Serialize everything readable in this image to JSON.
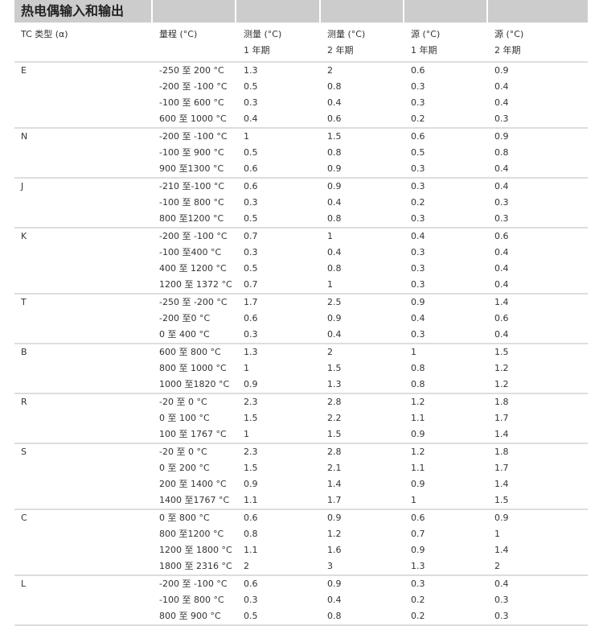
{
  "title": "热电偶输入和输出",
  "headers": {
    "line1": [
      "TC 类型 (α)",
      "量程 (°C)",
      "测量 (°C)",
      "测量 (°C)",
      "源 (°C)",
      "源 (°C)"
    ],
    "line2": [
      "",
      "",
      "1 年期",
      "2 年期",
      "1 年期",
      "2 年期"
    ]
  },
  "groups": [
    {
      "type": "E",
      "rows": [
        [
          "-250 至 200 °C",
          "1.3",
          "2",
          "0.6",
          "0.9"
        ],
        [
          "-200 至 -100 °C",
          "0.5",
          "0.8",
          "0.3",
          "0.4"
        ],
        [
          "-100 至 600 °C",
          "0.3",
          "0.4",
          "0.3",
          "0.4"
        ],
        [
          "600 至 1000 °C",
          "0.4",
          "0.6",
          "0.2",
          "0.3"
        ]
      ]
    },
    {
      "type": "N",
      "rows": [
        [
          "-200 至 -100 °C",
          "1",
          "1.5",
          "0.6",
          "0.9"
        ],
        [
          "-100 至 900 °C",
          "0.5",
          "0.8",
          "0.5",
          "0.8"
        ],
        [
          "900 至1300 °C",
          "0.6",
          "0.9",
          "0.3",
          "0.4"
        ]
      ]
    },
    {
      "type": "J",
      "rows": [
        [
          "-210 至-100 °C",
          "0.6",
          "0.9",
          "0.3",
          "0.4"
        ],
        [
          "-100 至 800 °C",
          "0.3",
          "0.4",
          "0.2",
          "0.3"
        ],
        [
          "800 至1200 °C",
          "0.5",
          "0.8",
          "0.3",
          "0.3"
        ]
      ]
    },
    {
      "type": "K",
      "rows": [
        [
          "-200 至 -100 °C",
          "0.7",
          "1",
          "0.4",
          "0.6"
        ],
        [
          "-100 至400 °C",
          "0.3",
          "0.4",
          "0.3",
          "0.4"
        ],
        [
          "400 至 1200 °C",
          "0.5",
          "0.8",
          "0.3",
          "0.4"
        ],
        [
          "1200 至 1372 °C",
          "0.7",
          "1",
          "0.3",
          "0.4"
        ]
      ]
    },
    {
      "type": "T",
      "rows": [
        [
          "-250 至 -200 °C",
          "1.7",
          "2.5",
          "0.9",
          "1.4"
        ],
        [
          "-200 至0 °C",
          "0.6",
          "0.9",
          "0.4",
          "0.6"
        ],
        [
          "0 至 400 °C",
          "0.3",
          "0.4",
          "0.3",
          "0.4"
        ]
      ]
    },
    {
      "type": "B",
      "rows": [
        [
          "600 至 800 °C",
          "1.3",
          "2",
          "1",
          "1.5"
        ],
        [
          "800 至 1000 °C",
          "1",
          "1.5",
          "0.8",
          "1.2"
        ],
        [
          "1000 至1820 °C",
          "0.9",
          "1.3",
          "0.8",
          "1.2"
        ]
      ]
    },
    {
      "type": "R",
      "rows": [
        [
          "-20 至 0 °C",
          "2.3",
          "2.8",
          "1.2",
          "1.8"
        ],
        [
          "0 至 100 °C",
          "1.5",
          "2.2",
          "1.1",
          "1.7"
        ],
        [
          "100 至 1767 °C",
          "1",
          "1.5",
          "0.9",
          "1.4"
        ]
      ]
    },
    {
      "type": "S",
      "rows": [
        [
          "-20 至 0 °C",
          "2.3",
          "2.8",
          "1.2",
          "1.8"
        ],
        [
          "0 至 200 °C",
          "1.5",
          "2.1",
          "1.1",
          "1.7"
        ],
        [
          "200 至 1400 °C",
          "0.9",
          "1.4",
          "0.9",
          "1.4"
        ],
        [
          "1400 至1767 °C",
          "1.1",
          "1.7",
          "1",
          "1.5"
        ]
      ]
    },
    {
      "type": "C",
      "rows": [
        [
          "0 至 800 °C",
          "0.6",
          "0.9",
          "0.6",
          "0.9"
        ],
        [
          "800 至1200 °C",
          "0.8",
          "1.2",
          "0.7",
          "1"
        ],
        [
          "1200 至 1800 °C",
          "1.1",
          "1.6",
          "0.9",
          "1.4"
        ],
        [
          "1800 至 2316 °C",
          "2",
          "3",
          "1.3",
          "2"
        ]
      ]
    },
    {
      "type": "L",
      "rows": [
        [
          "-200 至 -100 °C",
          "0.6",
          "0.9",
          "0.3",
          "0.4"
        ],
        [
          "-100 至 800 °C",
          "0.3",
          "0.4",
          "0.2",
          "0.3"
        ],
        [
          "800 至 900 °C",
          "0.5",
          "0.8",
          "0.2",
          "0.3"
        ]
      ]
    }
  ]
}
